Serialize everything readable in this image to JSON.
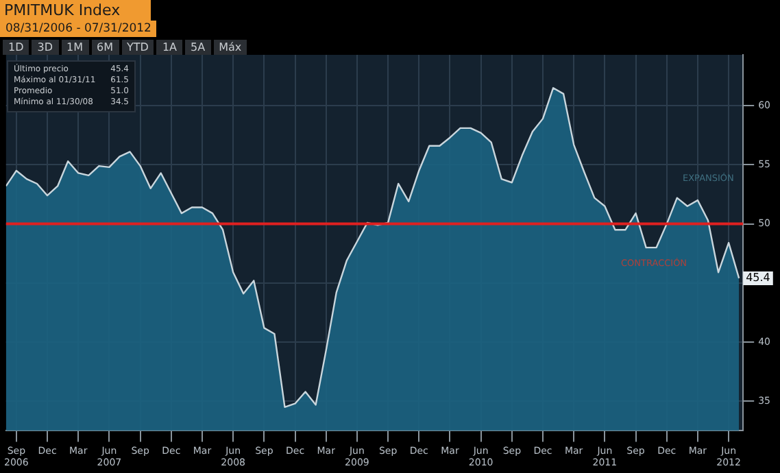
{
  "chart_data": {
    "type": "area",
    "title": "PMITMUK Index",
    "subtitle": "08/31/2006 - 07/31/2012",
    "x": [
      "2006-08",
      "2006-09",
      "2006-10",
      "2006-11",
      "2006-12",
      "2007-01",
      "2007-02",
      "2007-03",
      "2007-04",
      "2007-05",
      "2007-06",
      "2007-07",
      "2007-08",
      "2007-09",
      "2007-10",
      "2007-11",
      "2007-12",
      "2008-01",
      "2008-02",
      "2008-03",
      "2008-04",
      "2008-05",
      "2008-06",
      "2008-07",
      "2008-08",
      "2008-09",
      "2008-10",
      "2008-11",
      "2008-12",
      "2009-01",
      "2009-02",
      "2009-03",
      "2009-04",
      "2009-05",
      "2009-06",
      "2009-07",
      "2009-08",
      "2009-09",
      "2009-10",
      "2009-11",
      "2009-12",
      "2010-01",
      "2010-02",
      "2010-03",
      "2010-04",
      "2010-05",
      "2010-06",
      "2010-07",
      "2010-08",
      "2010-09",
      "2010-10",
      "2010-11",
      "2010-12",
      "2011-01",
      "2011-02",
      "2011-03",
      "2011-04",
      "2011-05",
      "2011-06",
      "2011-07",
      "2011-08",
      "2011-09",
      "2011-10",
      "2011-11",
      "2011-12",
      "2012-01",
      "2012-02",
      "2012-03",
      "2012-04",
      "2012-05",
      "2012-06",
      "2012-07"
    ],
    "series": [
      {
        "color": "#1b6382",
        "values": [
          53.2,
          54.5,
          53.8,
          53.4,
          52.4,
          53.2,
          55.3,
          54.3,
          54.1,
          54.9,
          54.8,
          55.7,
          56.1,
          54.9,
          53.0,
          54.3,
          52.6,
          50.9,
          51.4,
          51.4,
          50.9,
          49.5,
          45.9,
          44.1,
          45.2,
          41.2,
          40.7,
          34.5,
          34.8,
          35.8,
          34.7,
          39.3,
          44.2,
          46.9,
          48.5,
          50.1,
          49.9,
          50.1,
          53.4,
          51.9,
          54.5,
          56.6,
          56.6,
          57.3,
          58.1,
          58.1,
          57.7,
          56.9,
          53.8,
          53.5,
          55.8,
          57.8,
          58.9,
          61.5,
          61.0,
          56.7,
          54.4,
          52.2,
          51.5,
          49.5,
          49.5,
          50.9,
          48.0,
          48.0,
          50.0,
          52.2,
          51.5,
          52.0,
          50.3,
          45.9,
          48.4,
          45.4
        ]
      }
    ],
    "xlim": [
      "2006-08",
      "2012-07"
    ],
    "xticks": [
      {
        "value": "2006-09",
        "label": "Sep 2006"
      },
      {
        "value": "2006-12",
        "label": "Dec"
      },
      {
        "value": "2007-03",
        "label": "Mar"
      },
      {
        "value": "2007-06",
        "label": "Jun 2007"
      },
      {
        "value": "2007-09",
        "label": "Sep"
      },
      {
        "value": "2007-12",
        "label": "Dec"
      },
      {
        "value": "2008-03",
        "label": "Mar"
      },
      {
        "value": "2008-06",
        "label": "Jun 2008"
      },
      {
        "value": "2008-09",
        "label": "Sep"
      },
      {
        "value": "2008-12",
        "label": "Dec"
      },
      {
        "value": "2009-03",
        "label": "Mar"
      },
      {
        "value": "2009-06",
        "label": "Jun 2009"
      },
      {
        "value": "2009-09",
        "label": "Sep"
      },
      {
        "value": "2009-12",
        "label": "Dec"
      },
      {
        "value": "2010-03",
        "label": "Mar"
      },
      {
        "value": "2010-06",
        "label": "Jun 2010"
      },
      {
        "value": "2010-09",
        "label": "Sep"
      },
      {
        "value": "2010-12",
        "label": "Dec"
      },
      {
        "value": "2011-03",
        "label": "Mar"
      },
      {
        "value": "2011-06",
        "label": "Jun 2011"
      },
      {
        "value": "2011-09",
        "label": "Sep"
      },
      {
        "value": "2011-12",
        "label": "Dec"
      },
      {
        "value": "2012-03",
        "label": "Mar"
      },
      {
        "value": "2012-06",
        "label": "Jun 2012"
      }
    ],
    "ylim": [
      32.5,
      64.3
    ],
    "yticks": [
      35,
      40,
      {
        "value": 45,
        "label": null
      },
      50,
      55,
      60
    ],
    "grid": true,
    "ref_lines": [
      {
        "axis": "y",
        "value": 50,
        "color": "#e02020"
      }
    ],
    "annotations": [
      "1D",
      "3D",
      "1M",
      "6M",
      "YTD",
      "1A",
      "5A",
      "Máx",
      "Último precio 45.4",
      "Máximo al 01/31/11 61.5",
      "Promedio 51.0",
      "Mínimo al 11/30/08 34.5",
      "EXPANSIÓN",
      "CONTRACCIÓN",
      {
        "text": "45.4",
        "x": "2012-07",
        "y": 45.4
      }
    ]
  }
}
